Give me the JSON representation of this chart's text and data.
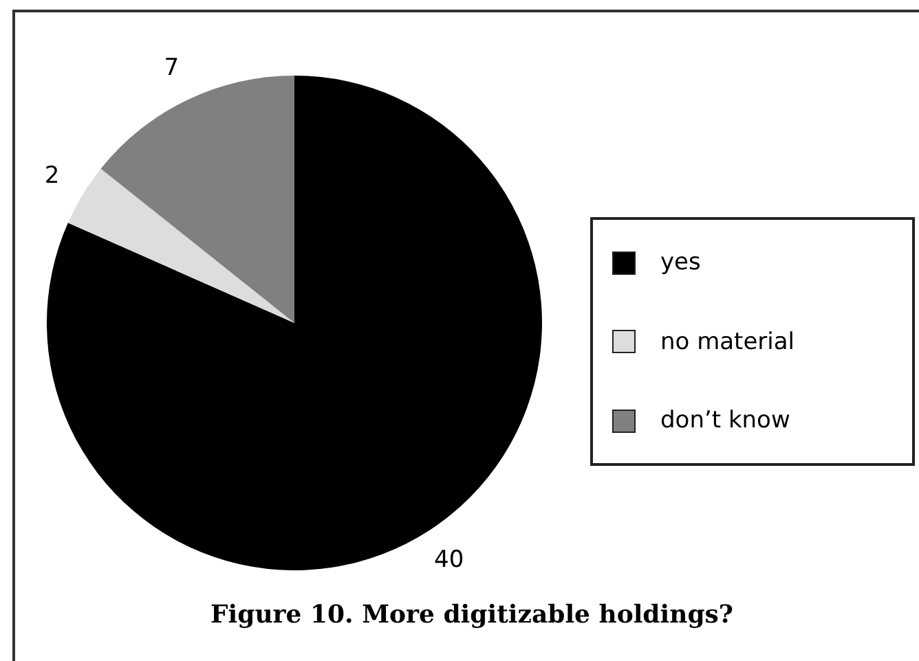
{
  "chart_data": {
    "type": "pie",
    "title": "Figure 10. More digitizable holdings?",
    "categories": [
      "yes",
      "no material",
      "don’t know"
    ],
    "values": [
      40,
      2,
      7
    ],
    "colors": [
      "#000000",
      "#dddddd",
      "#808080"
    ],
    "data_labels": true,
    "legend": "right"
  }
}
